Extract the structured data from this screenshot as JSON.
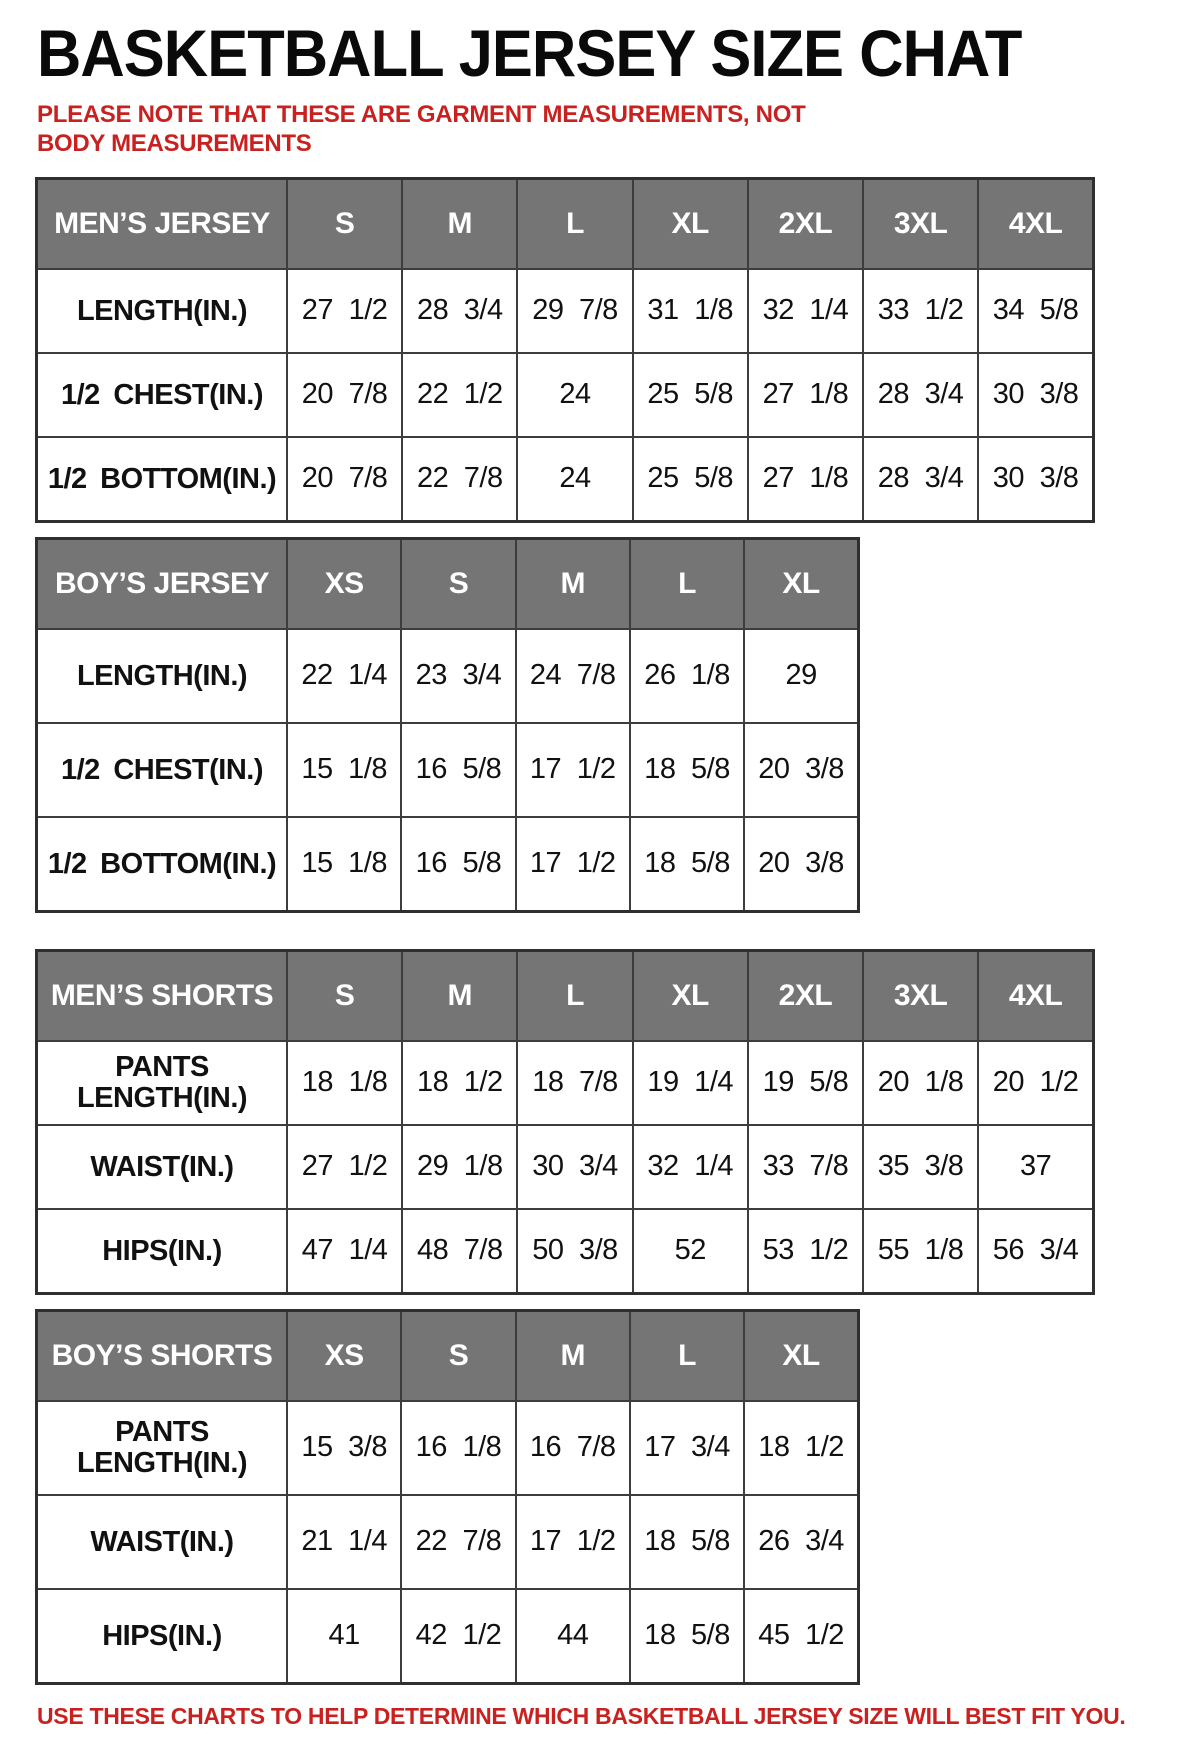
{
  "page": {
    "title": "BASKETBALL JERSEY SIZE CHAT",
    "note_line": "PLEASE NOTE THAT THESE ARE GARMENT MEASUREMENTS, NOT BODY MEASUREMENTS",
    "footer": "USE THESE CHARTS TO HELP DETERMINE WHICH BASKETBALL JERSEY SIZE WILL BEST FIT YOU."
  },
  "colors": {
    "header_bg": "#757575",
    "header_text": "#ffffff",
    "accent_red": "#c9211f",
    "grid_border": "#3d3d3d"
  },
  "chart_data": [
    {
      "type": "table",
      "title": "MEN’S JERSEY",
      "header": [
        "MEN’S JERSEY",
        "S",
        "M",
        "L",
        "XL",
        "2XL",
        "3XL",
        "4XL"
      ],
      "rows": [
        {
          "label": "LENGTH(IN.)",
          "values": [
            "27 1/2",
            "28 3/4",
            "29 7/8",
            "31 1/8",
            "32 1/4",
            "33 1/2",
            "34 5/8"
          ]
        },
        {
          "label": "1/2 CHEST(IN.)",
          "values": [
            "20 7/8",
            "22 1/2",
            "24",
            "25 5/8",
            "27 1/8",
            "28 3/4",
            "30 3/8"
          ]
        },
        {
          "label": "1/2 BOTTOM(IN.)",
          "values": [
            "20 7/8",
            "22 7/8",
            "24",
            "25 5/8",
            "27 1/8",
            "28 3/4",
            "30 3/8"
          ]
        }
      ],
      "size_class": "wide",
      "css_id": "mens-jersey"
    },
    {
      "type": "table",
      "title": "BOY’S JERSEY",
      "header": [
        "BOY’S JERSEY",
        "XS",
        "S",
        "M",
        "L",
        "XL"
      ],
      "rows": [
        {
          "label": "LENGTH(IN.)",
          "values": [
            "22 1/4",
            "23 3/4",
            "24 7/8",
            "26 1/8",
            "29"
          ]
        },
        {
          "label": "1/2 CHEST(IN.)",
          "values": [
            "15 1/8",
            "16 5/8",
            "17 1/2",
            "18 5/8",
            "20 3/8"
          ]
        },
        {
          "label": "1/2 BOTTOM(IN.)",
          "values": [
            "15 1/8",
            "16 5/8",
            "17 1/2",
            "18 5/8",
            "20 3/8"
          ]
        }
      ],
      "size_class": "narrow",
      "css_id": "boys-jersey"
    },
    {
      "type": "table",
      "title": "MEN’S SHORTS",
      "header": [
        "MEN’S SHORTS",
        "S",
        "M",
        "L",
        "XL",
        "2XL",
        "3XL",
        "4XL"
      ],
      "rows": [
        {
          "label": "PANTS LENGTH(IN.)",
          "values": [
            "18 1/8",
            "18 1/2",
            "18 7/8",
            "19 1/4",
            "19 5/8",
            "20 1/8",
            "20 1/2"
          ]
        },
        {
          "label": "WAIST(IN.)",
          "values": [
            "27 1/2",
            "29 1/8",
            "30 3/4",
            "32 1/4",
            "33 7/8",
            "35 3/8",
            "37"
          ]
        },
        {
          "label": "HIPS(IN.)",
          "values": [
            "47 1/4",
            "48 7/8",
            "50 3/8",
            "52",
            "53 1/2",
            "55 1/8",
            "56 3/4"
          ]
        }
      ],
      "size_class": "wide",
      "css_id": "mens-shorts"
    },
    {
      "type": "table",
      "title": "BOY’S SHORTS",
      "header": [
        "BOY’S SHORTS",
        "XS",
        "S",
        "M",
        "L",
        "XL"
      ],
      "rows": [
        {
          "label": "PANTS LENGTH(IN.)",
          "values": [
            "15 3/8",
            "16 1/8",
            "16 7/8",
            "17 3/4",
            "18 1/2"
          ]
        },
        {
          "label": "WAIST(IN.)",
          "values": [
            "21 1/4",
            "22 7/8",
            "17 1/2",
            "18 5/8",
            "26 3/4"
          ]
        },
        {
          "label": "HIPS(IN.)",
          "values": [
            "41",
            "42 1/2",
            "44",
            "18 5/8",
            "45 1/2"
          ]
        }
      ],
      "size_class": "narrow",
      "css_id": "boys-shorts"
    }
  ]
}
